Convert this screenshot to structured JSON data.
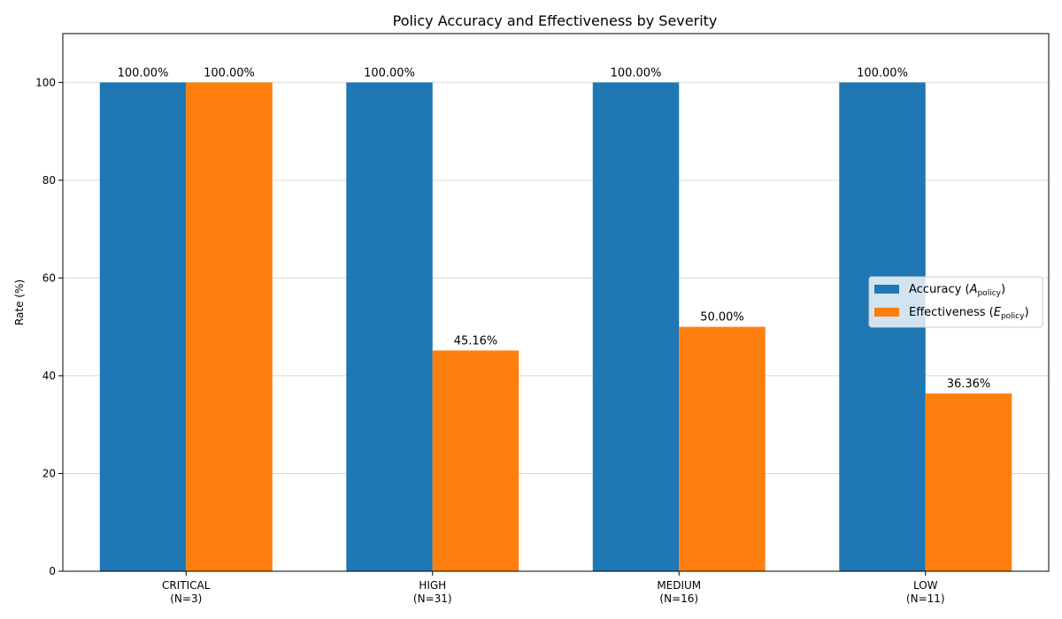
{
  "chart_data": {
    "type": "bar",
    "title": "Policy Accuracy and Effectiveness by Severity",
    "ylabel": "Rate (%)",
    "xlabel": "",
    "categories": [
      "CRITICAL\n(N=3)",
      "HIGH\n(N=31)",
      "MEDIUM\n(N=16)",
      "LOW\n(N=11)"
    ],
    "series": [
      {
        "name": "Accuracy",
        "symbol": "A",
        "subscript": "policy",
        "color": "#1f77b4",
        "values": [
          100,
          100,
          100,
          100
        ],
        "labels": [
          "100.00%",
          "100.00%",
          "100.00%",
          "100.00%"
        ]
      },
      {
        "name": "Effectiveness",
        "symbol": "E",
        "subscript": "policy",
        "color": "#ff7f0e",
        "values": [
          100,
          45.16,
          50,
          36.36
        ],
        "labels": [
          "100.00%",
          "45.16%",
          "50.00%",
          "36.36%"
        ]
      }
    ],
    "ylim": [
      0,
      110
    ],
    "yticks": [
      0,
      20,
      40,
      60,
      80,
      100
    ],
    "grid": "y",
    "legend_position": "center-right"
  }
}
